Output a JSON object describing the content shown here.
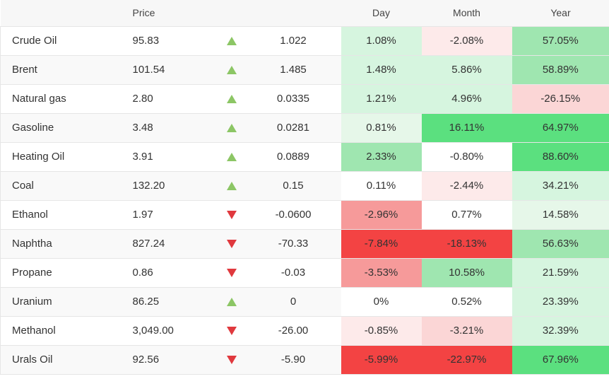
{
  "header": {
    "name": "",
    "price": "Price",
    "arrow": "",
    "change": "",
    "day": "Day",
    "month": "Month",
    "year": "Year"
  },
  "colors": {
    "up_arrow": "#8cc665",
    "down_arrow": "#e0393e",
    "pos_light": "#e6f7e9",
    "pos_mid": "#d6f5df",
    "pos_strong": "#9fe6b0",
    "pos_max": "#5be07f",
    "neg_light": "#fdeaea",
    "neg_mid": "#fbd6d6",
    "neg_strong": "#f69a9a",
    "neg_max": "#f34343",
    "neutral": "#ffffff"
  },
  "rows": [
    {
      "name": "Crude Oil",
      "price": "95.83",
      "direction": "up",
      "change": "1.022",
      "day": "1.08%",
      "month": "-2.08%",
      "year": "57.05%"
    },
    {
      "name": "Brent",
      "price": "101.54",
      "direction": "up",
      "change": "1.485",
      "day": "1.48%",
      "month": "5.86%",
      "year": "58.89%"
    },
    {
      "name": "Natural gas",
      "price": "2.80",
      "direction": "up",
      "change": "0.0335",
      "day": "1.21%",
      "month": "4.96%",
      "year": "-26.15%"
    },
    {
      "name": "Gasoline",
      "price": "3.48",
      "direction": "up",
      "change": "0.0281",
      "day": "0.81%",
      "month": "16.11%",
      "year": "64.97%"
    },
    {
      "name": "Heating Oil",
      "price": "3.91",
      "direction": "up",
      "change": "0.0889",
      "day": "2.33%",
      "month": "-0.80%",
      "year": "88.60%"
    },
    {
      "name": "Coal",
      "price": "132.20",
      "direction": "up",
      "change": "0.15",
      "day": "0.11%",
      "month": "-2.44%",
      "year": "34.21%"
    },
    {
      "name": "Ethanol",
      "price": "1.97",
      "direction": "down",
      "change": "-0.0600",
      "day": "-2.96%",
      "month": "0.77%",
      "year": "14.58%"
    },
    {
      "name": "Naphtha",
      "price": "827.24",
      "direction": "down",
      "change": "-70.33",
      "day": "-7.84%",
      "month": "-18.13%",
      "year": "56.63%"
    },
    {
      "name": "Propane",
      "price": "0.86",
      "direction": "down",
      "change": "-0.03",
      "day": "-3.53%",
      "month": "10.58%",
      "year": "21.59%"
    },
    {
      "name": "Uranium",
      "price": "86.25",
      "direction": "up",
      "change": "0",
      "day": "0%",
      "month": "0.52%",
      "year": "23.39%"
    },
    {
      "name": "Methanol",
      "price": "3,049.00",
      "direction": "down",
      "change": "-26.00",
      "day": "-0.85%",
      "month": "-3.21%",
      "year": "32.39%"
    },
    {
      "name": "Urals Oil",
      "price": "92.56",
      "direction": "down",
      "change": "-5.90",
      "day": "-5.99%",
      "month": "-22.97%",
      "year": "67.96%"
    }
  ]
}
